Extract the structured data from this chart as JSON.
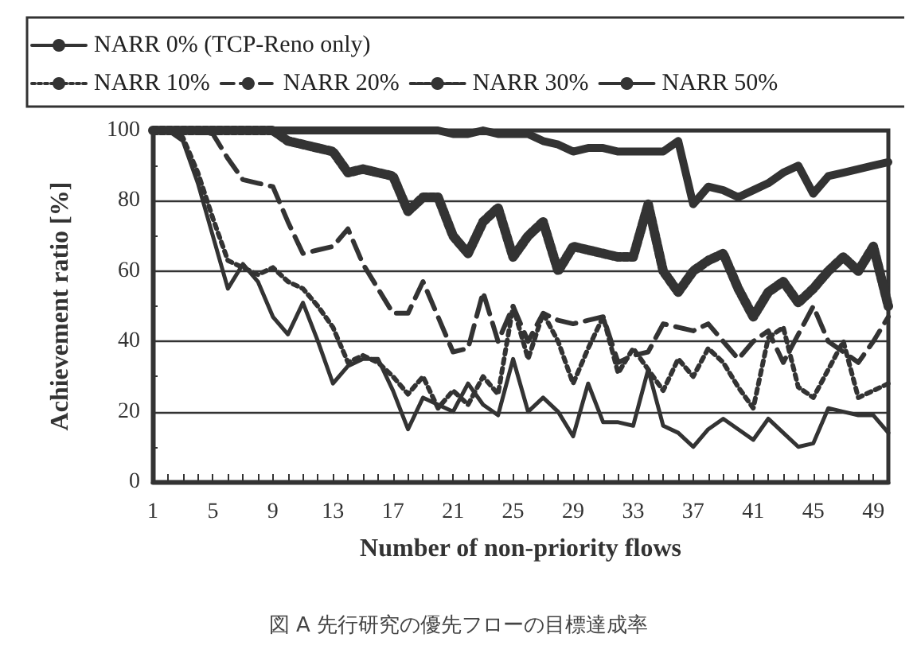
{
  "chart_data": {
    "type": "line",
    "xlabel": "Number of non-priority flows",
    "ylabel": "Achievement ratio [%]",
    "categories": [
      "1",
      null,
      null,
      null,
      "5",
      null,
      null,
      null,
      "9",
      null,
      null,
      null,
      "13",
      null,
      null,
      null,
      "17",
      null,
      null,
      null,
      "21",
      null,
      null,
      null,
      "25",
      null,
      null,
      null,
      "29",
      null,
      null,
      null,
      "33",
      null,
      null,
      null,
      "37",
      null,
      null,
      null,
      "41",
      null,
      null,
      null,
      "45",
      null,
      null,
      null,
      "49",
      null
    ],
    "ylim": [
      0,
      100
    ],
    "yticks": [
      0,
      20,
      40,
      60,
      80,
      100
    ],
    "grid": "y",
    "legend": "top",
    "marker": "none",
    "annotations": [
      "図 A 先行研究の優先フローの目標達成率"
    ],
    "series": [
      {
        "name": "NARR 0% (TCP-Reno only)",
        "color": "#333333",
        "line_style": "solid",
        "values": [
          100,
          100,
          100,
          100,
          100,
          100,
          100,
          100,
          100,
          100,
          100,
          100,
          100,
          100,
          100,
          100,
          100,
          100,
          100,
          100,
          99,
          99,
          100,
          99,
          99,
          99,
          97,
          96,
          94,
          95,
          95,
          94,
          94,
          94,
          94,
          97,
          79,
          84,
          83,
          81,
          83,
          85,
          88,
          90,
          82,
          87,
          88,
          89,
          90,
          91
        ]
      },
      {
        "name": "NARR 10%",
        "color": "#333333",
        "line_style": "dotted",
        "values": [
          100,
          100,
          98,
          88,
          75,
          63,
          61,
          59,
          61,
          57,
          55,
          50,
          44,
          34,
          36,
          34,
          30,
          25,
          30,
          21,
          26,
          22,
          30,
          25,
          50,
          35,
          48,
          40,
          28,
          38,
          47,
          31,
          38,
          32,
          26,
          35,
          30,
          38,
          34,
          27,
          21,
          41,
          44,
          27,
          24,
          32,
          40,
          24,
          26,
          28
        ]
      },
      {
        "name": "NARR 20%",
        "color": "#333333",
        "line_style": "dashed",
        "values": [
          100,
          100,
          100,
          100,
          99,
          92,
          86,
          85,
          84,
          74,
          65,
          66,
          67,
          72,
          62,
          55,
          48,
          48,
          57,
          47,
          37,
          38,
          54,
          40,
          50,
          40,
          48,
          46,
          45,
          46,
          47,
          34,
          36,
          37,
          45,
          44,
          43,
          45,
          40,
          35,
          40,
          43,
          34,
          42,
          50,
          40,
          37,
          34,
          40,
          47
        ]
      },
      {
        "name": "NARR 30%",
        "color": "#333333",
        "line_style": "dashed",
        "values": [
          100,
          100,
          100,
          100,
          100,
          100,
          100,
          100,
          100,
          97,
          96,
          95,
          94,
          88,
          89,
          88,
          87,
          77,
          81,
          81,
          70,
          65,
          74,
          78,
          64,
          70,
          74,
          60,
          67,
          66,
          65,
          64,
          64,
          79,
          60,
          54,
          60,
          63,
          65,
          55,
          47,
          54,
          57,
          51,
          55,
          60,
          64,
          60,
          67,
          50
        ]
      },
      {
        "name": "NARR 50%",
        "color": "#333333",
        "line_style": "solid",
        "values": [
          100,
          100,
          97,
          85,
          70,
          55,
          62,
          57,
          47,
          42,
          51,
          40,
          28,
          33,
          35,
          35,
          26,
          15,
          24,
          22,
          20,
          28,
          22,
          19,
          35,
          20,
          24,
          20,
          13,
          28,
          17,
          17,
          16,
          32,
          16,
          14,
          10,
          15,
          18,
          15,
          12,
          18,
          14,
          10,
          11,
          21,
          20,
          19,
          19,
          14
        ]
      }
    ]
  }
}
